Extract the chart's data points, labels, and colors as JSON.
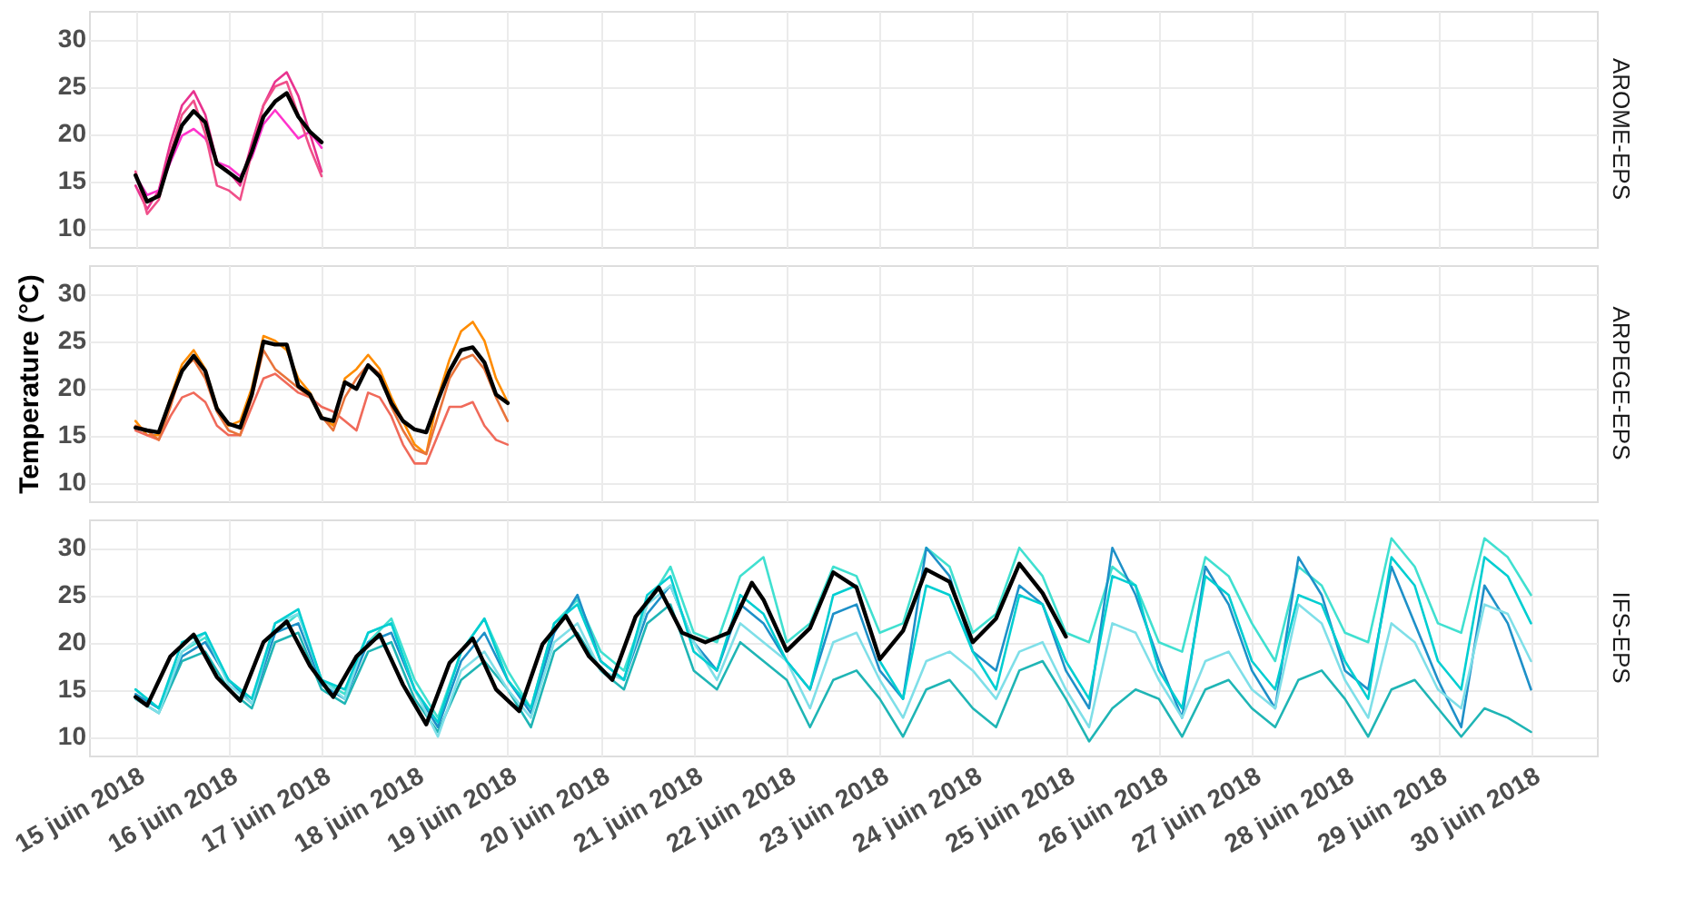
{
  "chart_data": [
    {
      "type": "line",
      "title": "AROME-EPS",
      "tick_labels": "y",
      "grid": true,
      "xlim": [
        "2018-06-14T12:00",
        "2018-06-30T17:00"
      ],
      "ylim": [
        8,
        33
      ],
      "yticks": [
        10,
        15,
        20,
        25,
        30
      ],
      "xticks": [
        {
          "value": "2018-06-15",
          "label": null
        },
        {
          "value": "2018-06-16",
          "label": null
        },
        {
          "value": "2018-06-17",
          "label": null
        },
        {
          "value": "2018-06-18",
          "label": null
        },
        {
          "value": "2018-06-19",
          "label": null
        },
        {
          "value": "2018-06-20",
          "label": null
        },
        {
          "value": "2018-06-21",
          "label": null
        },
        {
          "value": "2018-06-22",
          "label": null
        },
        {
          "value": "2018-06-23",
          "label": null
        },
        {
          "value": "2018-06-24",
          "label": null
        },
        {
          "value": "2018-06-25",
          "label": null
        },
        {
          "value": "2018-06-26",
          "label": null
        },
        {
          "value": "2018-06-27",
          "label": null
        },
        {
          "value": "2018-06-28",
          "label": null
        },
        {
          "value": "2018-06-29",
          "label": null
        },
        {
          "value": "2018-06-30",
          "label": null
        }
      ],
      "x": [
        "2018-06-15T00:00",
        "2018-06-15T03:00",
        "2018-06-15T06:00",
        "2018-06-15T09:00",
        "2018-06-15T12:00",
        "2018-06-15T15:00",
        "2018-06-15T18:00",
        "2018-06-15T21:00",
        "2018-06-16T00:00",
        "2018-06-16T03:00",
        "2018-06-16T06:00",
        "2018-06-16T09:00",
        "2018-06-16T12:00",
        "2018-06-16T15:00",
        "2018-06-16T18:00",
        "2018-06-16T21:00",
        "2018-06-17T00:00"
      ],
      "series": [
        {
          "color": "#e8338f",
          "values": [
            14.5,
            12,
            14,
            19,
            23,
            24.5,
            22,
            17,
            16,
            14.5,
            19,
            23,
            25.5,
            26.5,
            24,
            20,
            16
          ]
        },
        {
          "color": "#ff33cc",
          "values": [
            15.5,
            13.5,
            14,
            17,
            19.8,
            20.5,
            19.5,
            17,
            16.5,
            15.5,
            17.5,
            21,
            22.5,
            21,
            19.5,
            20.2,
            18.5
          ]
        },
        {
          "color": "#f0508a",
          "values": [
            16,
            11.5,
            13,
            18,
            22,
            23.5,
            20,
            14.5,
            14,
            13,
            18,
            23,
            25,
            25.5,
            22,
            18.5,
            15.5
          ]
        },
        {
          "color": "#000000",
          "values": [
            15.6,
            12.8,
            13.4,
            17.5,
            20.9,
            22.4,
            21.2,
            16.8,
            15.9,
            15.0,
            18.1,
            21.8,
            23.4,
            24.3,
            21.8,
            20.2,
            19.1
          ]
        }
      ]
    },
    {
      "type": "line",
      "title": "ARPEGE-EPS",
      "ylabel": "Temperature (°C)",
      "tick_labels": "y",
      "grid": true,
      "xlim": [
        "2018-06-14T12:00",
        "2018-06-30T17:00"
      ],
      "ylim": [
        8,
        33
      ],
      "yticks": [
        10,
        15,
        20,
        25,
        30
      ],
      "xticks": [
        {
          "value": "2018-06-15",
          "label": null
        },
        {
          "value": "2018-06-16",
          "label": null
        },
        {
          "value": "2018-06-17",
          "label": null
        },
        {
          "value": "2018-06-18",
          "label": null
        },
        {
          "value": "2018-06-19",
          "label": null
        },
        {
          "value": "2018-06-20",
          "label": null
        },
        {
          "value": "2018-06-21",
          "label": null
        },
        {
          "value": "2018-06-22",
          "label": null
        },
        {
          "value": "2018-06-23",
          "label": null
        },
        {
          "value": "2018-06-24",
          "label": null
        },
        {
          "value": "2018-06-25",
          "label": null
        },
        {
          "value": "2018-06-26",
          "label": null
        },
        {
          "value": "2018-06-27",
          "label": null
        },
        {
          "value": "2018-06-28",
          "label": null
        },
        {
          "value": "2018-06-29",
          "label": null
        },
        {
          "value": "2018-06-30",
          "label": null
        }
      ],
      "x": [
        "2018-06-15T00:00",
        "2018-06-15T03:00",
        "2018-06-15T06:00",
        "2018-06-15T09:00",
        "2018-06-15T12:00",
        "2018-06-15T15:00",
        "2018-06-15T18:00",
        "2018-06-15T21:00",
        "2018-06-16T00:00",
        "2018-06-16T03:00",
        "2018-06-16T06:00",
        "2018-06-16T09:00",
        "2018-06-16T12:00",
        "2018-06-16T15:00",
        "2018-06-16T18:00",
        "2018-06-16T21:00",
        "2018-06-17T00:00",
        "2018-06-17T03:00",
        "2018-06-17T06:00",
        "2018-06-17T09:00",
        "2018-06-17T12:00",
        "2018-06-17T15:00",
        "2018-06-17T18:00",
        "2018-06-17T21:00",
        "2018-06-18T00:00",
        "2018-06-18T03:00",
        "2018-06-18T06:00",
        "2018-06-18T09:00",
        "2018-06-18T12:00",
        "2018-06-18T15:00",
        "2018-06-18T18:00",
        "2018-06-18T21:00",
        "2018-06-19T00:00"
      ],
      "series": [
        {
          "color": "#ff8c00",
          "values": [
            16.5,
            15,
            15,
            19,
            22.5,
            24,
            22,
            18,
            16,
            16.5,
            20,
            25.5,
            25,
            24,
            21,
            19.5,
            17,
            16,
            21,
            22,
            23.5,
            22,
            19,
            16.5,
            14,
            13,
            19,
            23,
            26,
            27,
            25,
            21,
            18.5
          ]
        },
        {
          "color": "#f06a5a",
          "values": [
            15.5,
            15,
            14.5,
            17,
            19,
            19.5,
            18.5,
            16,
            15,
            15,
            18,
            21,
            21.5,
            20.5,
            19.5,
            19,
            18,
            17.5,
            16.5,
            15.5,
            19.5,
            19,
            17,
            14,
            12,
            12,
            15,
            18,
            18,
            18.5,
            16,
            14.5,
            14
          ]
        },
        {
          "color": "#e8743b",
          "values": [
            16,
            15.5,
            14.5,
            18,
            22,
            23,
            21,
            17.5,
            15.5,
            15,
            19,
            24,
            22,
            21,
            20,
            19,
            17,
            15.5,
            19,
            21,
            22.5,
            21.5,
            18,
            15.5,
            13.5,
            13,
            17,
            21,
            23,
            23.5,
            22,
            19,
            16.5
          ]
        },
        {
          "color": "#000000",
          "values": [
            15.8,
            15.5,
            15.3,
            18.7,
            21.8,
            23.4,
            21.8,
            17.8,
            16.2,
            15.8,
            19.3,
            24.9,
            24.6,
            24.6,
            20.2,
            19.3,
            16.8,
            16.5,
            20.6,
            19.9,
            22.4,
            21.2,
            18.4,
            16.5,
            15.6,
            15.3,
            18.7,
            21.8,
            24.0,
            24.3,
            22.7,
            19.3,
            18.4
          ]
        }
      ]
    },
    {
      "type": "line",
      "title": "IFS-EPS",
      "grid": true,
      "xlim": [
        "2018-06-14T12:00",
        "2018-06-30T17:00"
      ],
      "ylim": [
        8,
        33
      ],
      "yticks": [
        10,
        15,
        20,
        25,
        30
      ],
      "xticks": [
        {
          "value": "2018-06-15",
          "label": "15 juin 2018"
        },
        {
          "value": "2018-06-16",
          "label": "16 juin 2018"
        },
        {
          "value": "2018-06-17",
          "label": "17 juin 2018"
        },
        {
          "value": "2018-06-18",
          "label": "18 juin 2018"
        },
        {
          "value": "2018-06-19",
          "label": "19 juin 2018"
        },
        {
          "value": "2018-06-20",
          "label": "20 juin 2018"
        },
        {
          "value": "2018-06-21",
          "label": "21 juin 2018"
        },
        {
          "value": "2018-06-22",
          "label": "22 juin 2018"
        },
        {
          "value": "2018-06-23",
          "label": "23 juin 2018"
        },
        {
          "value": "2018-06-24",
          "label": "24 juin 2018"
        },
        {
          "value": "2018-06-25",
          "label": "25 juin 2018"
        },
        {
          "value": "2018-06-26",
          "label": "26 juin 2018"
        },
        {
          "value": "2018-06-27",
          "label": "27 juin 2018"
        },
        {
          "value": "2018-06-28",
          "label": "28 juin 2018"
        },
        {
          "value": "2018-06-29",
          "label": "29 juin 2018"
        },
        {
          "value": "2018-06-30",
          "label": "30 juin 2018"
        }
      ],
      "x": [
        "2018-06-15T00:00",
        "2018-06-15T06:00",
        "2018-06-15T12:00",
        "2018-06-15T18:00",
        "2018-06-16T00:00",
        "2018-06-16T06:00",
        "2018-06-16T12:00",
        "2018-06-16T18:00",
        "2018-06-17T00:00",
        "2018-06-17T06:00",
        "2018-06-17T12:00",
        "2018-06-17T18:00",
        "2018-06-18T00:00",
        "2018-06-18T06:00",
        "2018-06-18T12:00",
        "2018-06-18T18:00",
        "2018-06-19T00:00",
        "2018-06-19T06:00",
        "2018-06-19T12:00",
        "2018-06-19T18:00",
        "2018-06-20T00:00",
        "2018-06-20T06:00",
        "2018-06-20T12:00",
        "2018-06-20T18:00",
        "2018-06-21T00:00",
        "2018-06-21T06:00",
        "2018-06-21T12:00",
        "2018-06-21T18:00",
        "2018-06-22T00:00",
        "2018-06-22T06:00",
        "2018-06-22T12:00",
        "2018-06-22T18:00",
        "2018-06-23T00:00",
        "2018-06-23T06:00",
        "2018-06-23T12:00",
        "2018-06-23T18:00",
        "2018-06-24T00:00",
        "2018-06-24T06:00",
        "2018-06-24T12:00",
        "2018-06-24T18:00",
        "2018-06-25T00:00",
        "2018-06-25T06:00",
        "2018-06-25T12:00",
        "2018-06-25T18:00",
        "2018-06-26T00:00",
        "2018-06-26T06:00",
        "2018-06-26T12:00",
        "2018-06-26T18:00",
        "2018-06-27T00:00",
        "2018-06-27T06:00",
        "2018-06-27T12:00",
        "2018-06-27T18:00",
        "2018-06-28T00:00",
        "2018-06-28T06:00",
        "2018-06-28T12:00",
        "2018-06-28T18:00",
        "2018-06-29T00:00",
        "2018-06-29T06:00",
        "2018-06-29T12:00",
        "2018-06-29T18:00",
        "2018-06-30T00:00"
      ],
      "series": [
        {
          "color": "#40e0d0",
          "values": [
            15,
            13,
            19,
            20.5,
            16,
            14,
            21,
            23,
            16,
            14.5,
            20,
            22.5,
            16,
            12,
            19,
            22.5,
            17,
            13,
            22,
            24.5,
            19,
            17,
            24,
            28,
            21,
            20,
            27,
            29,
            20,
            22,
            28,
            27,
            21,
            22,
            30,
            28,
            21,
            23,
            30,
            27,
            21,
            20,
            28,
            26,
            20,
            19,
            29,
            27,
            22,
            18,
            28,
            26,
            21,
            20,
            31,
            28,
            22,
            21,
            31,
            29,
            25
          ]
        },
        {
          "color": "#1fb5b5",
          "values": [
            14,
            12.5,
            18,
            19,
            15,
            13,
            20,
            21,
            15,
            13.5,
            19,
            20,
            14,
            10.5,
            16,
            18,
            15,
            11,
            19,
            21,
            17,
            15,
            22,
            24,
            17,
            15,
            20,
            18,
            16,
            11,
            16,
            17,
            14,
            10,
            15,
            16,
            13,
            11,
            17,
            18,
            14,
            9.5,
            13,
            15,
            14,
            10,
            15,
            16,
            13,
            11,
            16,
            17,
            14,
            10,
            15,
            16,
            13,
            10,
            13,
            12,
            10.5
          ]
        },
        {
          "color": "#1e90c8",
          "values": [
            14.5,
            13,
            18.5,
            20,
            16,
            13.5,
            21,
            22,
            15.5,
            14,
            20,
            21,
            15,
            11,
            18,
            21,
            16,
            12.5,
            21,
            25,
            18,
            16,
            23,
            26,
            20,
            17,
            24,
            22,
            18,
            15,
            23,
            24,
            17,
            14,
            30,
            27,
            19,
            17,
            26,
            24,
            17,
            13,
            30,
            25,
            18,
            12,
            28,
            24,
            17,
            13,
            29,
            25,
            17,
            15,
            28,
            22,
            16,
            11,
            26,
            22,
            15
          ]
        },
        {
          "color": "#7fdfe8",
          "values": [
            14,
            12.5,
            19,
            21,
            15.5,
            13.5,
            22,
            23,
            16,
            14,
            21,
            22,
            15,
            10,
            17,
            19,
            15,
            12,
            20,
            22,
            17,
            16,
            24,
            26,
            20,
            16,
            22,
            20,
            18,
            13,
            20,
            21,
            16,
            12,
            18,
            19,
            17,
            14,
            19,
            20,
            15,
            11,
            22,
            21,
            16,
            12,
            18,
            19,
            15,
            13,
            24,
            22,
            16,
            12,
            22,
            20,
            15,
            13,
            24,
            23,
            18
          ]
        },
        {
          "color": "#00ced1",
          "values": [
            15,
            13,
            20,
            21,
            16,
            14,
            22,
            23.5,
            16,
            15,
            21,
            22,
            15,
            11.5,
            19,
            22.5,
            16,
            13,
            22,
            24,
            18,
            16,
            25,
            27,
            19,
            17,
            25,
            23,
            18,
            15,
            25,
            26,
            18,
            14,
            26,
            25,
            19,
            15,
            25,
            24,
            18,
            14,
            27,
            26,
            17,
            13,
            27,
            25,
            18,
            15,
            25,
            24,
            18,
            14,
            29,
            26,
            18,
            15,
            29,
            27,
            22
          ]
        },
        {
          "color": "#000000",
          "x": [
            "2018-06-15T00:00",
            "2018-06-15T03:00",
            "2018-06-15T09:00",
            "2018-06-15T15:00",
            "2018-06-15T21:00",
            "2018-06-16T03:00",
            "2018-06-16T09:00",
            "2018-06-16T15:00",
            "2018-06-16T21:00",
            "2018-06-17T03:00",
            "2018-06-17T09:00",
            "2018-06-17T15:00",
            "2018-06-17T21:00",
            "2018-06-18T03:00",
            "2018-06-18T09:00",
            "2018-06-18T15:00",
            "2018-06-18T21:00",
            "2018-06-19T03:00",
            "2018-06-19T09:00",
            "2018-06-19T15:00",
            "2018-06-19T21:00",
            "2018-06-20T03:00",
            "2018-06-20T09:00",
            "2018-06-20T15:00",
            "2018-06-20T21:00",
            "2018-06-21T03:00",
            "2018-06-21T09:00",
            "2018-06-21T15:00",
            "2018-06-21T18:00",
            "2018-06-22T00:00",
            "2018-06-22T06:00",
            "2018-06-22T12:00",
            "2018-06-22T18:00",
            "2018-06-23T00:00",
            "2018-06-23T06:00",
            "2018-06-23T12:00",
            "2018-06-23T18:00",
            "2018-06-24T00:00",
            "2018-06-24T06:00",
            "2018-06-24T12:00",
            "2018-06-24T18:00",
            "2018-06-25T00:00"
          ],
          "values": [
            14.2,
            13.3,
            18.5,
            20.8,
            16.3,
            13.8,
            20.0,
            22.2,
            17.5,
            14.2,
            18.5,
            20.8,
            15.5,
            11.3,
            17.8,
            20.4,
            15.0,
            12.7,
            19.8,
            22.8,
            18.5,
            16.0,
            22.7,
            25.8,
            21.0,
            20.0,
            21.0,
            26.3,
            24.5,
            19.1,
            21.5,
            27.4,
            25.8,
            18.2,
            21.2,
            27.7,
            26.4,
            20.0,
            22.5,
            28.3,
            25.2,
            20.6
          ]
        }
      ]
    }
  ]
}
